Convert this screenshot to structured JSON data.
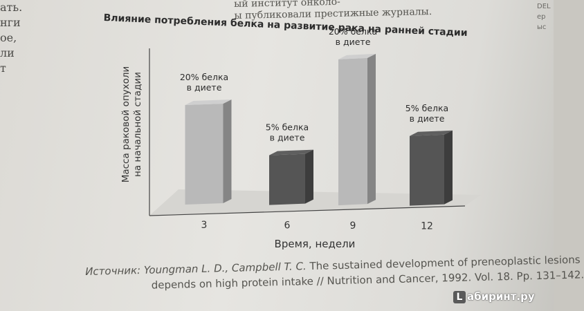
{
  "page": {
    "margin_fragments": [
      "ать.",
      "нги",
      "ое,",
      "ли",
      "т"
    ],
    "top_text_lines": [
      "ый институт онколо-",
      "ы публиковали престижные журналы."
    ],
    "right_edge": [
      "DEL",
      "ер",
      "ыс"
    ]
  },
  "chart_data": {
    "type": "bar",
    "title": "Влияние потребления белка на развитие рака на ранней стадии",
    "xlabel": "Время, недели",
    "ylabel_lines": [
      "Масса раковой опухоли",
      "на начальной стадии"
    ],
    "categories": [
      "3",
      "6",
      "9",
      "12"
    ],
    "values": [
      60,
      30,
      88,
      42
    ],
    "ylim": [
      0,
      100
    ],
    "bar_labels": [
      [
        "20% белка",
        "в диете"
      ],
      [
        "5% белка",
        "в диете"
      ],
      [
        "20% белка",
        "в диете"
      ],
      [
        "5% белка",
        "в диете"
      ]
    ],
    "bar_colors": [
      "#b9b9b9",
      "#555555",
      "#b9b9b9",
      "#555555"
    ],
    "grid": false,
    "legend": "none"
  },
  "source": {
    "label": "Источник:",
    "authors": "Youngman L. D., Campbell T. C.",
    "line1_rest": "The sustained development of preneoplastic lesions",
    "line2": "depends on high protein intake // Nutrition and Cancer, 1992. Vol. 18. Pp. 131–142."
  },
  "watermark": {
    "badge": "L",
    "text": "абиринт.ру"
  }
}
